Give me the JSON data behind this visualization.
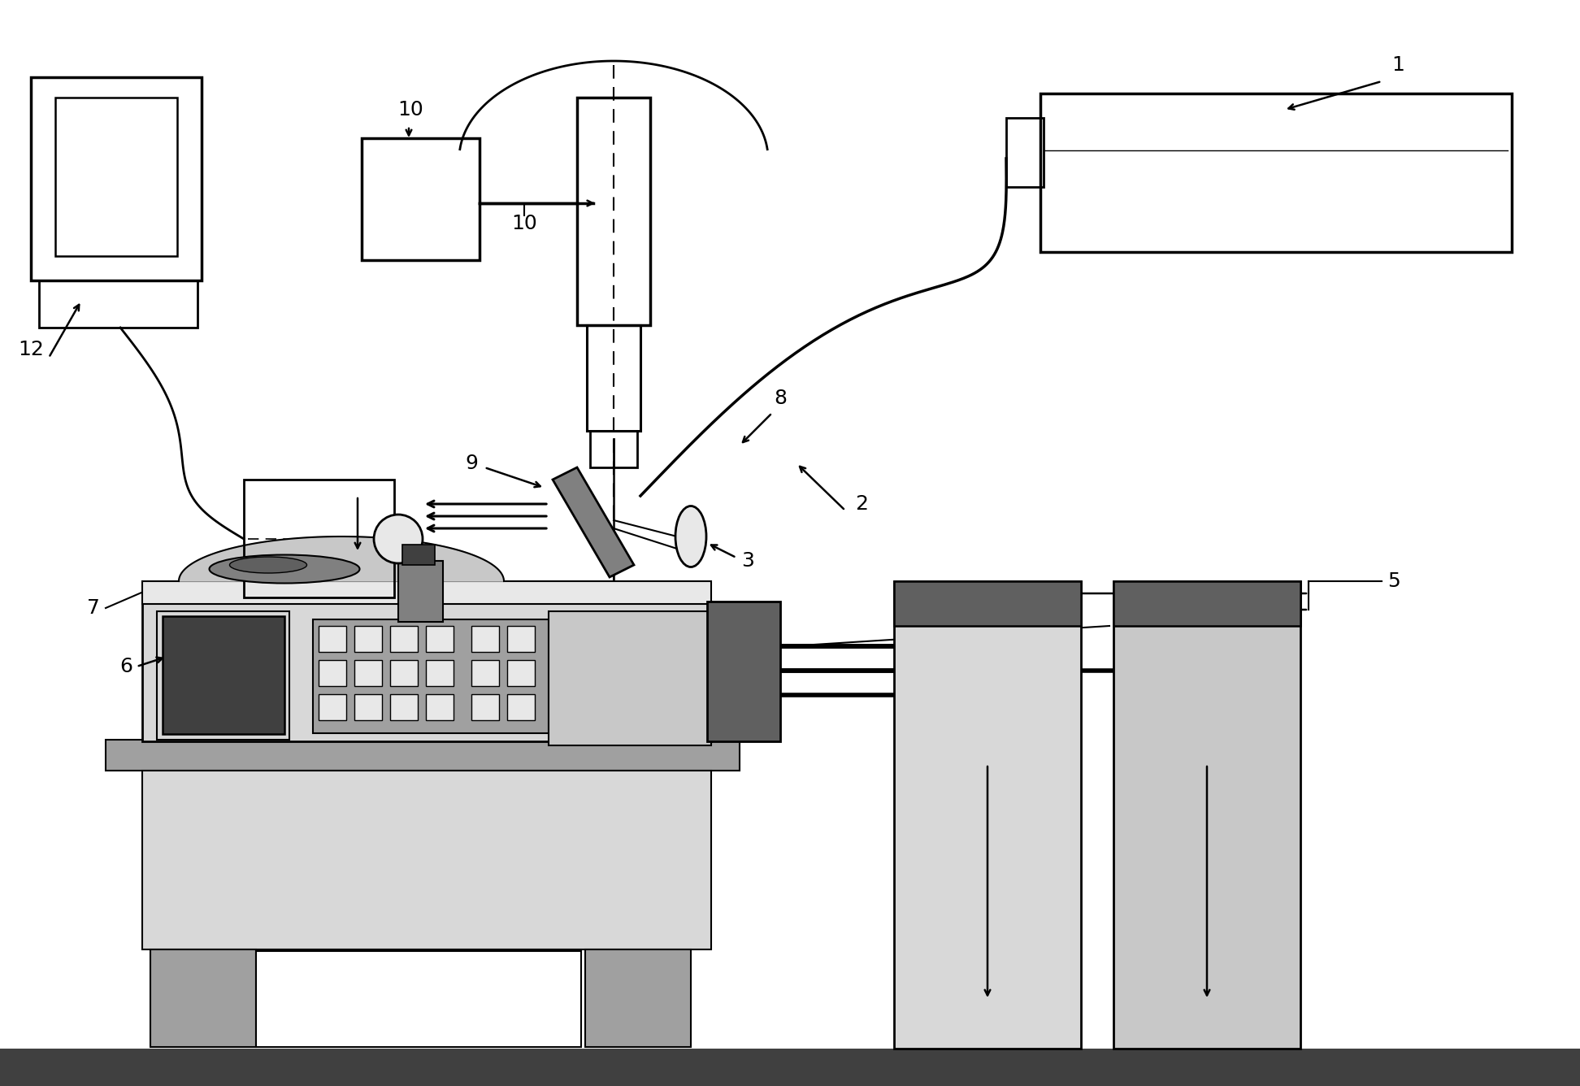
{
  "bg_color": "#ffffff",
  "lc": "#000000",
  "gray1": "#c8c8c8",
  "gray2": "#a0a0a0",
  "gray3": "#808080",
  "gray4": "#606060",
  "gray5": "#404040",
  "gray6": "#d8d8d8",
  "gray7": "#e8e8e8",
  "label_fontsize": 18,
  "lw": 1.8
}
